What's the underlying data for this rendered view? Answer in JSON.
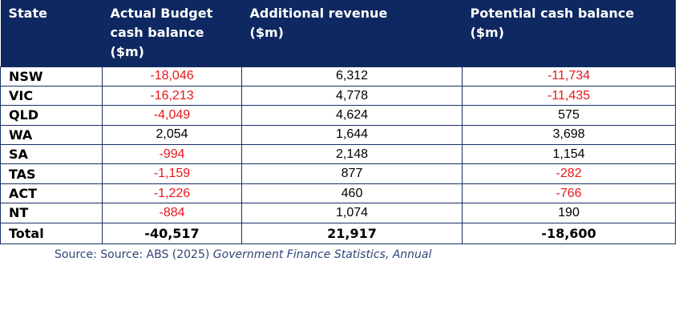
{
  "headers": {
    "state": "State",
    "actual_line1": "Actual Budget",
    "actual_line2": "cash balance",
    "actual_line3": "($m)",
    "additional_line1": "Additional revenue",
    "additional_line2": "($m)",
    "potential_line1": "Potential cash balance",
    "potential_line2": "($m)"
  },
  "rows": [
    {
      "state": "NSW",
      "actual": "-18,046",
      "additional": "6,312",
      "potential": "-11,734"
    },
    {
      "state": "VIC",
      "actual": "-16,213",
      "additional": "4,778",
      "potential": "-11,435"
    },
    {
      "state": "QLD",
      "actual": "-4,049",
      "additional": "4,624",
      "potential": "575"
    },
    {
      "state": "WA",
      "actual": "2,054",
      "additional": "1,644",
      "potential": "3,698"
    },
    {
      "state": "SA",
      "actual": "-994",
      "additional": "2,148",
      "potential": "1,154"
    },
    {
      "state": "TAS",
      "actual": "-1,159",
      "additional": "877",
      "potential": "-282"
    },
    {
      "state": "ACT",
      "actual": "-1,226",
      "additional": "460",
      "potential": "-766"
    },
    {
      "state": "NT",
      "actual": "-884",
      "additional": "1,074",
      "potential": "190"
    }
  ],
  "total": {
    "state": "Total",
    "actual": "-40,517",
    "additional": "21,917",
    "potential": "-18,600"
  },
  "source": {
    "prefix": "Source: Source: ABS (2025) ",
    "title": "Government Finance Statistics, Annual"
  },
  "colors": {
    "header_bg": "#0e2861",
    "negative": "#e8161b",
    "border": "#1a2f66"
  }
}
